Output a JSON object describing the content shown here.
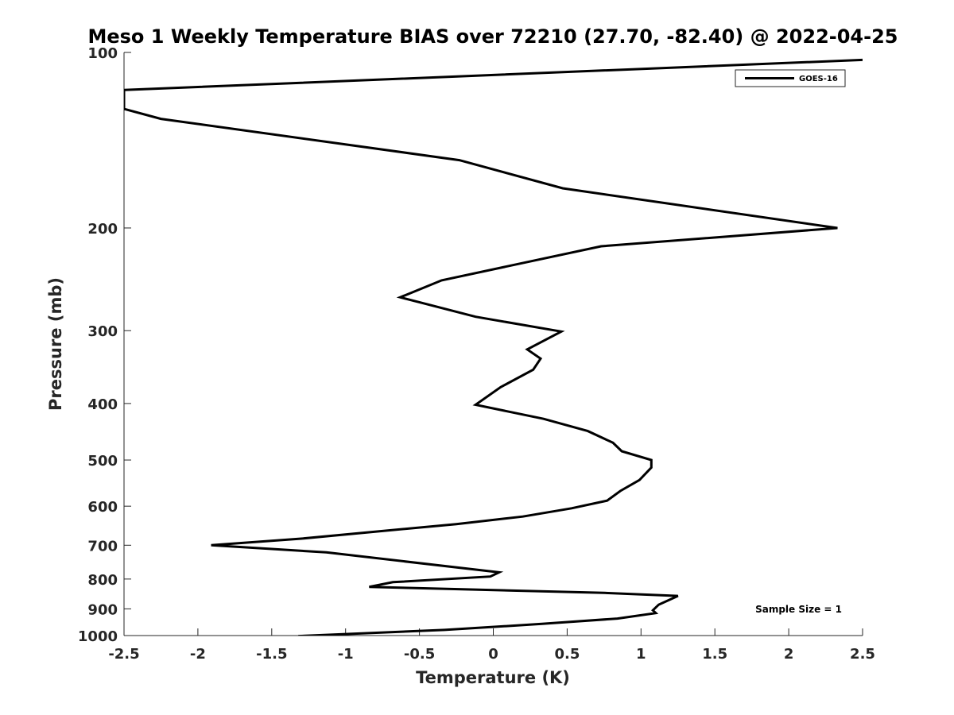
{
  "chart_data": {
    "type": "line",
    "title": "Meso 1 Weekly Temperature BIAS over 72210 (27.70, -82.40) @ 2022-04-25",
    "xlabel": "Temperature (K)",
    "ylabel": "Pressure (mb)",
    "xlim": [
      -2.5,
      2.5
    ],
    "ylim": [
      100,
      1000
    ],
    "y_scale": "log",
    "y_reversed": true,
    "x_ticks": [
      -2.5,
      -2,
      -1.5,
      -1,
      -0.5,
      0,
      0.5,
      1,
      1.5,
      2,
      2.5
    ],
    "x_tick_labels": [
      "-2.5",
      "-2",
      "-1.5",
      "-1",
      "-0.5",
      "0",
      "0.5",
      "1",
      "1.5",
      "2",
      "2.5"
    ],
    "y_ticks": [
      100,
      200,
      300,
      400,
      500,
      600,
      700,
      800,
      900,
      1000
    ],
    "y_tick_labels": [
      "100",
      "200",
      "300",
      "400",
      "500",
      "600",
      "700",
      "800",
      "900",
      "1000"
    ],
    "grid": false,
    "legend_position": "top-right",
    "series": [
      {
        "name": "GOES-16",
        "color": "#000000",
        "points": [
          {
            "x": 2.5,
            "p": 103
          },
          {
            "x": -2.5,
            "p": 116
          },
          {
            "x": -2.5,
            "p": 125
          },
          {
            "x": -2.25,
            "p": 130
          },
          {
            "x": -0.23,
            "p": 153
          },
          {
            "x": 0.47,
            "p": 171
          },
          {
            "x": 2.33,
            "p": 200
          },
          {
            "x": 0.73,
            "p": 215
          },
          {
            "x": -0.35,
            "p": 246
          },
          {
            "x": -0.63,
            "p": 263
          },
          {
            "x": -0.12,
            "p": 284
          },
          {
            "x": 0.46,
            "p": 301
          },
          {
            "x": 0.23,
            "p": 323
          },
          {
            "x": 0.32,
            "p": 335
          },
          {
            "x": 0.27,
            "p": 350
          },
          {
            "x": 0.05,
            "p": 375
          },
          {
            "x": -0.12,
            "p": 402
          },
          {
            "x": 0.34,
            "p": 425
          },
          {
            "x": 0.64,
            "p": 446
          },
          {
            "x": 0.81,
            "p": 467
          },
          {
            "x": 0.87,
            "p": 483
          },
          {
            "x": 1.07,
            "p": 500
          },
          {
            "x": 1.07,
            "p": 515
          },
          {
            "x": 0.99,
            "p": 541
          },
          {
            "x": 0.86,
            "p": 565
          },
          {
            "x": 0.77,
            "p": 587
          },
          {
            "x": 0.53,
            "p": 605
          },
          {
            "x": 0.2,
            "p": 625
          },
          {
            "x": -0.25,
            "p": 644
          },
          {
            "x": -1.3,
            "p": 682
          },
          {
            "x": -1.91,
            "p": 700
          },
          {
            "x": -1.13,
            "p": 720
          },
          {
            "x": 0.04,
            "p": 779
          },
          {
            "x": -0.02,
            "p": 792
          },
          {
            "x": -0.68,
            "p": 810
          },
          {
            "x": -0.84,
            "p": 825
          },
          {
            "x": 0.75,
            "p": 845
          },
          {
            "x": 1.25,
            "p": 855
          },
          {
            "x": 1.12,
            "p": 885
          },
          {
            "x": 1.08,
            "p": 905
          },
          {
            "x": 1.1,
            "p": 915
          },
          {
            "x": 0.84,
            "p": 935
          },
          {
            "x": 0.33,
            "p": 955
          },
          {
            "x": -0.33,
            "p": 978
          },
          {
            "x": -1.32,
            "p": 1002
          }
        ]
      }
    ],
    "annotations": [
      {
        "text": "Sample Size = 1",
        "position": "bottom-right"
      }
    ]
  }
}
